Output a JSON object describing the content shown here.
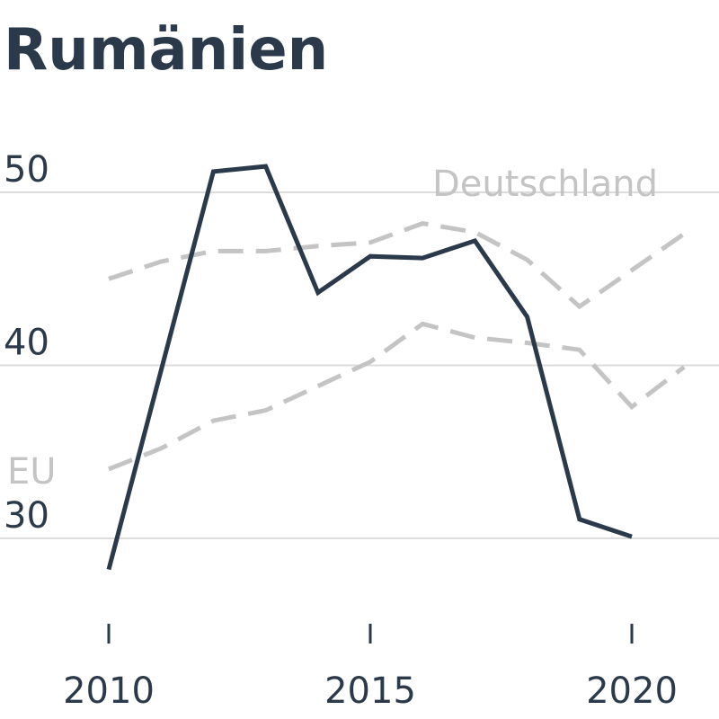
{
  "chart_data": {
    "type": "line",
    "title": "Rumänien",
    "xlabel": "",
    "ylabel": "",
    "x_ticks": [
      2010,
      2015,
      2020
    ],
    "y_ticks": [
      30,
      40,
      50
    ],
    "xlim": [
      2010,
      2021
    ],
    "ylim": [
      30,
      50
    ],
    "grid": true,
    "series": [
      {
        "name": "",
        "style": "solid",
        "color": "#2b3a4a",
        "points": [
          [
            2010,
            28.2
          ],
          [
            2012,
            51.2
          ],
          [
            2013,
            51.5
          ],
          [
            2014,
            44.2
          ],
          [
            2015,
            46.3
          ],
          [
            2016,
            46.2
          ],
          [
            2017,
            47.2
          ],
          [
            2018,
            42.8
          ],
          [
            2019,
            31.1
          ],
          [
            2020,
            30.1
          ]
        ]
      },
      {
        "name": "Deutschland",
        "style": "dashed",
        "color": "#c4c4c4",
        "points": [
          [
            2010,
            45.0
          ],
          [
            2011,
            46.0
          ],
          [
            2012,
            46.6
          ],
          [
            2013,
            46.6
          ],
          [
            2014,
            46.9
          ],
          [
            2015,
            47.1
          ],
          [
            2016,
            48.2
          ],
          [
            2017,
            47.7
          ],
          [
            2018,
            46.1
          ],
          [
            2019,
            43.4
          ],
          [
            2020,
            45.5
          ],
          [
            2021,
            47.6
          ]
        ]
      },
      {
        "name": "EU",
        "style": "dashed",
        "color": "#c4c4c4",
        "points": [
          [
            2010,
            34.0
          ],
          [
            2011,
            35.2
          ],
          [
            2012,
            36.8
          ],
          [
            2013,
            37.4
          ],
          [
            2014,
            38.8
          ],
          [
            2015,
            40.2
          ],
          [
            2016,
            42.4
          ],
          [
            2017,
            41.6
          ],
          [
            2018,
            41.3
          ],
          [
            2019,
            40.9
          ],
          [
            2020,
            37.6
          ],
          [
            2021,
            39.9
          ]
        ]
      }
    ]
  }
}
